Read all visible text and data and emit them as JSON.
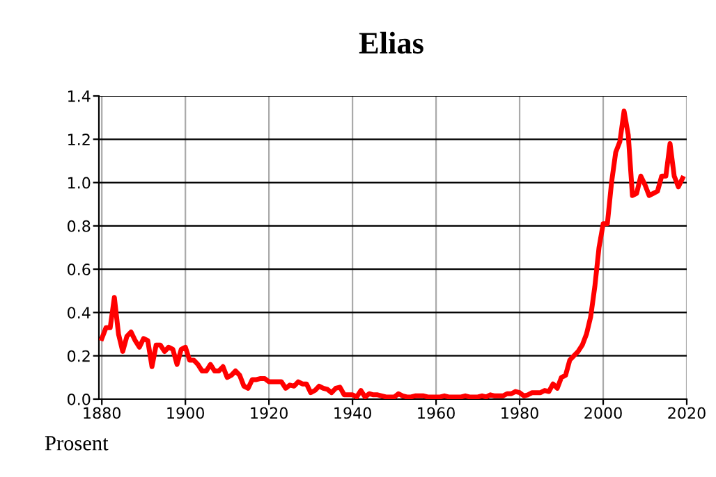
{
  "chart_data": {
    "type": "line",
    "title": "Elias",
    "ylabel": "Prosent",
    "x": [
      1880,
      1881,
      1882,
      1883,
      1884,
      1885,
      1886,
      1887,
      1888,
      1889,
      1890,
      1891,
      1892,
      1893,
      1894,
      1895,
      1896,
      1897,
      1898,
      1899,
      1900,
      1901,
      1902,
      1903,
      1904,
      1905,
      1906,
      1907,
      1908,
      1909,
      1910,
      1911,
      1912,
      1913,
      1914,
      1915,
      1916,
      1917,
      1918,
      1919,
      1920,
      1921,
      1922,
      1923,
      1924,
      1925,
      1926,
      1927,
      1928,
      1929,
      1930,
      1931,
      1932,
      1933,
      1934,
      1935,
      1936,
      1937,
      1938,
      1939,
      1940,
      1941,
      1942,
      1943,
      1944,
      1945,
      1946,
      1947,
      1948,
      1949,
      1950,
      1951,
      1952,
      1953,
      1954,
      1955,
      1956,
      1957,
      1958,
      1959,
      1960,
      1961,
      1962,
      1963,
      1964,
      1965,
      1966,
      1967,
      1968,
      1969,
      1970,
      1971,
      1972,
      1973,
      1974,
      1975,
      1976,
      1977,
      1978,
      1979,
      1980,
      1981,
      1982,
      1983,
      1984,
      1985,
      1986,
      1987,
      1988,
      1989,
      1990,
      1991,
      1992,
      1993,
      1994,
      1995,
      1996,
      1997,
      1998,
      1999,
      2000,
      2001,
      2002,
      2003,
      2004,
      2005,
      2006,
      2007,
      2008,
      2009,
      2010,
      2011,
      2012,
      2013,
      2014,
      2015,
      2016,
      2017,
      2018,
      2019
    ],
    "series": [
      {
        "color": "#ff0000",
        "values": [
          0.28,
          0.33,
          0.33,
          0.47,
          0.3,
          0.22,
          0.29,
          0.31,
          0.27,
          0.24,
          0.28,
          0.27,
          0.15,
          0.25,
          0.25,
          0.22,
          0.24,
          0.23,
          0.16,
          0.23,
          0.24,
          0.18,
          0.18,
          0.16,
          0.13,
          0.13,
          0.16,
          0.13,
          0.13,
          0.15,
          0.1,
          0.11,
          0.13,
          0.11,
          0.06,
          0.05,
          0.09,
          0.09,
          0.095,
          0.095,
          0.08,
          0.08,
          0.08,
          0.08,
          0.05,
          0.065,
          0.06,
          0.08,
          0.07,
          0.07,
          0.03,
          0.04,
          0.06,
          0.05,
          0.045,
          0.03,
          0.05,
          0.055,
          0.02,
          0.02,
          0.02,
          0.01,
          0.04,
          0.01,
          0.025,
          0.02,
          0.02,
          0.015,
          0.01,
          0.01,
          0.01,
          0.025,
          0.015,
          0.01,
          0.01,
          0.015,
          0.015,
          0.015,
          0.01,
          0.01,
          0.01,
          0.01,
          0.015,
          0.01,
          0.01,
          0.01,
          0.01,
          0.015,
          0.01,
          0.01,
          0.01,
          0.015,
          0.01,
          0.02,
          0.015,
          0.015,
          0.015,
          0.025,
          0.025,
          0.035,
          0.03,
          0.015,
          0.02,
          0.03,
          0.03,
          0.03,
          0.04,
          0.035,
          0.07,
          0.05,
          0.1,
          0.11,
          0.18,
          0.2,
          0.22,
          0.25,
          0.3,
          0.38,
          0.52,
          0.7,
          0.81,
          0.81,
          1.0,
          1.14,
          1.19,
          1.33,
          1.22,
          0.94,
          0.95,
          1.03,
          0.99,
          0.94,
          0.95,
          0.96,
          1.03,
          1.03,
          1.18,
          1.03,
          0.98,
          1.02
        ]
      }
    ],
    "xlim": [
      1879.3,
      2020
    ],
    "xticks": [
      1880,
      1900,
      1920,
      1940,
      1960,
      1980,
      2000,
      2020
    ],
    "ylim": [
      0,
      1.4
    ],
    "yticks": [
      {
        "value": 0,
        "label": "0.0"
      },
      0.2,
      0.4,
      0.6,
      0.8,
      {
        "value": 1,
        "label": "1.0"
      },
      1.2,
      1.4
    ],
    "grid": true,
    "legend": false,
    "marker": "none",
    "line_style": "solid"
  }
}
